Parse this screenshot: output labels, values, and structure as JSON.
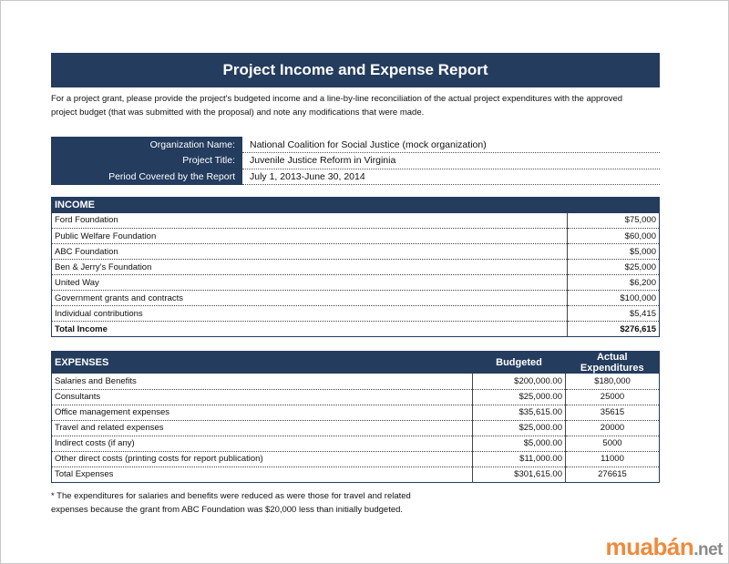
{
  "title": "Project Income and Expense Report",
  "intro": [
    "For a project grant, please provide the project's budgeted income and a line-by-line reconciliation of the actual project expenditures with the approved",
    "project budget (that was submitted with the proposal) and note any modifications that were made."
  ],
  "info": [
    {
      "label": "Organization Name:",
      "value": "National Coalition for Social Justice (mock organization)"
    },
    {
      "label": "Project Title:",
      "value": "Juvenile Justice Reform in Virginia"
    },
    {
      "label": "Period Covered by the Report",
      "value": "July 1, 2013-June 30, 2014"
    }
  ],
  "income": {
    "header": "INCOME",
    "rows": [
      [
        "Ford Foundation",
        "$75,000"
      ],
      [
        "Public Welfare Foundation",
        "$60,000"
      ],
      [
        "ABC Foundation",
        "$5,000"
      ],
      [
        "Ben & Jerry's Foundation",
        "$25,000"
      ],
      [
        "United Way",
        "$6,200"
      ],
      [
        "Government grants and contracts",
        "$100,000"
      ],
      [
        "Individual contributions",
        "$5,415"
      ]
    ],
    "total": [
      "Total Income",
      "$276,615"
    ]
  },
  "expenses": {
    "header": [
      "EXPENSES",
      "Budgeted",
      "Actual Expenditures"
    ],
    "rows": [
      [
        "Salaries and Benefits",
        "$200,000.00",
        "$180,000"
      ],
      [
        "Consultants",
        "$25,000.00",
        "25000"
      ],
      [
        "Office management expenses",
        "$35,615.00",
        "35615"
      ],
      [
        "Travel and related expenses",
        "$25,000.00",
        "20000"
      ],
      [
        "Indirect costs (if any)",
        "$5,000.00",
        "5000"
      ],
      [
        "Other direct costs (printing costs for report publication)",
        "$11,000.00",
        "11000"
      ]
    ],
    "total": [
      "Total Expenses",
      "$301,615.00",
      "276615"
    ]
  },
  "footnote": [
    "* The expenditures for salaries and benefits were reduced as were those for travel and related",
    "expenses because the grant from ABC Foundation was $20,000 less than initially budgeted."
  ],
  "watermark": {
    "brand": "muabán",
    "tld": ".net"
  }
}
